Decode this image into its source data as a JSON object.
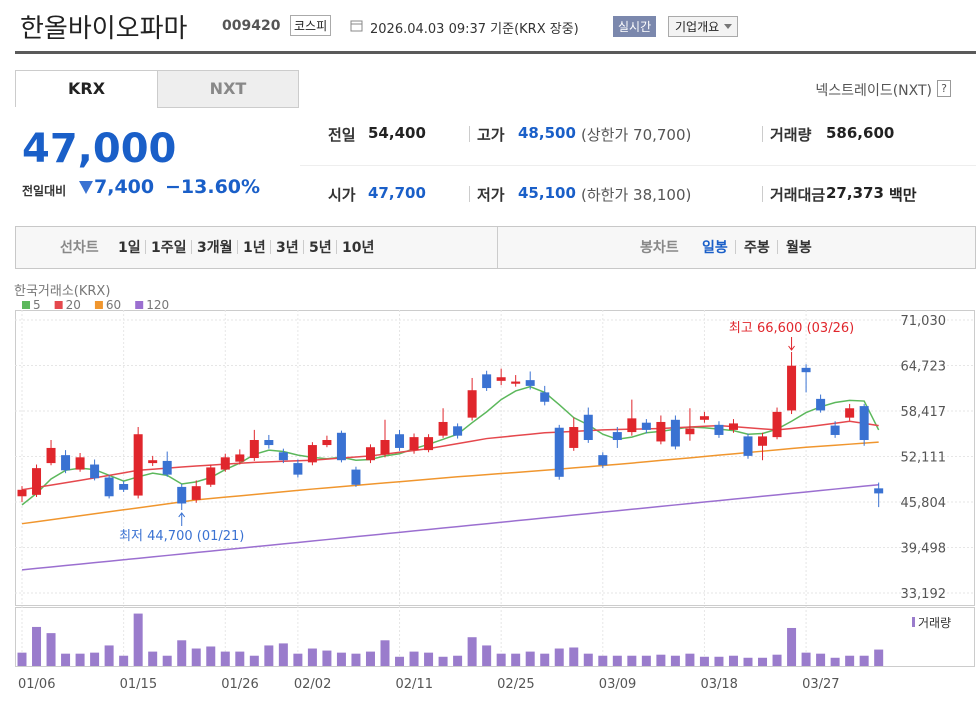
{
  "header": {
    "title": "한올바이오파마",
    "code": "009420",
    "market": "코스피",
    "timestamp": "2026.04.03 09:37 기준(KRX 장중)",
    "realtime": "실시간",
    "company_button": "기업개요"
  },
  "tabs": [
    "KRX",
    "NXT"
  ],
  "nxt_link": "넥스트레이드(NXT)",
  "help": "?",
  "quote": {
    "price": "47,000",
    "change_label": "전일대비",
    "change": "7,400",
    "change_rate": "−13.60%"
  },
  "info": [
    [
      {
        "label": "전일",
        "value": "54,400"
      },
      {
        "label": "고가",
        "value": "48,500",
        "note": "(상한가 70,700)"
      },
      {
        "label": "거래량",
        "value": "586,600"
      }
    ],
    [
      {
        "label": "시가",
        "value": "47,700"
      },
      {
        "label": "저가",
        "value": "45,100",
        "note": "(하한가 38,100)"
      },
      {
        "label": "거래대금",
        "value": "27,373",
        "unit": "백만"
      }
    ]
  ],
  "periods": {
    "line_label": "선차트",
    "line": [
      "1일",
      "1주일",
      "3개월",
      "1년",
      "3년",
      "5년",
      "10년"
    ],
    "candle_label": "봉차트",
    "candle": [
      "일봉",
      "주봉",
      "월봉"
    ],
    "active": "일봉"
  },
  "chart_data": {
    "type": "candlestick",
    "source": "한국거래소(KRX)",
    "categories": [
      "01/06",
      null,
      null,
      null,
      null,
      null,
      null,
      "01/15",
      null,
      null,
      null,
      null,
      null,
      null,
      "01/26",
      null,
      null,
      null,
      null,
      "02/02",
      null,
      null,
      null,
      null,
      null,
      null,
      "02/11",
      null,
      null,
      null,
      null,
      null,
      null,
      "02/25",
      null,
      null,
      null,
      null,
      null,
      null,
      "03/09",
      null,
      null,
      null,
      null,
      null,
      null,
      "03/18",
      null,
      null,
      null,
      null,
      null,
      null,
      "03/27",
      null,
      null,
      null,
      null,
      null
    ],
    "ohlc": {
      "open": [
        46600,
        46800,
        51200,
        52300,
        50300,
        51000,
        49200,
        48300,
        46700,
        51200,
        51500,
        47900,
        46100,
        48200,
        50300,
        51400,
        51900,
        54400,
        52700,
        51200,
        51300,
        53700,
        55400,
        50300,
        51600,
        52400,
        55200,
        53000,
        53000,
        55000,
        56300,
        57500,
        63500,
        62600,
        62200,
        62700,
        61000,
        56100,
        53300,
        57900,
        52300,
        55500,
        55500,
        56800,
        54200,
        57200,
        55200,
        57200,
        56500,
        55800,
        54900,
        53600,
        54800,
        58500,
        64400,
        60100,
        56400,
        57500,
        59100,
        47700
      ],
      "high": [
        48000,
        51000,
        54400,
        53000,
        52600,
        51700,
        49600,
        48700,
        56200,
        52200,
        52800,
        48300,
        48800,
        51000,
        52500,
        53100,
        55800,
        55100,
        53200,
        51700,
        54100,
        55000,
        55700,
        50700,
        53800,
        57200,
        55800,
        55300,
        55200,
        58800,
        56700,
        63000,
        64000,
        64300,
        63400,
        63900,
        61900,
        56500,
        57500,
        58900,
        52700,
        56200,
        60000,
        57300,
        57800,
        57800,
        58800,
        58300,
        57000,
        57300,
        55300,
        55400,
        58900,
        66600,
        64900,
        60700,
        57000,
        59400,
        59400,
        48500
      ],
      "low": [
        45800,
        46500,
        50900,
        49800,
        50000,
        48800,
        46300,
        47200,
        46300,
        50800,
        49300,
        44700,
        45700,
        47900,
        50000,
        51000,
        51500,
        53200,
        51200,
        49200,
        50900,
        53400,
        51300,
        47900,
        51200,
        52000,
        52900,
        52500,
        52700,
        54700,
        54600,
        57100,
        61200,
        62000,
        61800,
        61400,
        59200,
        48900,
        52900,
        54000,
        50500,
        53300,
        55000,
        55300,
        53800,
        53100,
        54300,
        56800,
        54700,
        55400,
        51800,
        51600,
        54500,
        58000,
        61000,
        58200,
        54700,
        57100,
        53600,
        45100
      ],
      "close": [
        47500,
        50500,
        53300,
        50200,
        52000,
        49100,
        46600,
        47500,
        55200,
        51600,
        49600,
        45600,
        48000,
        50600,
        52000,
        52400,
        54400,
        53700,
        51600,
        49600,
        53700,
        54400,
        51600,
        48200,
        53400,
        54400,
        53300,
        54800,
        54800,
        56900,
        55000,
        61300,
        61600,
        63100,
        62500,
        61900,
        59700,
        49300,
        56200,
        54400,
        50900,
        54400,
        57400,
        55800,
        56900,
        53500,
        56000,
        57700,
        55100,
        56700,
        52200,
        54900,
        58300,
        64700,
        63800,
        58500,
        55100,
        58800,
        54400,
        47000
      ]
    },
    "up_color": "#e0262c",
    "down_color": "#3a72d2",
    "moving_averages": [
      {
        "name": "5",
        "color": "#5cb85c",
        "values": [
          45400,
          47000,
          49000,
          50200,
          50500,
          50300,
          49500,
          48700,
          49300,
          49800,
          49500,
          48300,
          48600,
          49200,
          50300,
          51200,
          52400,
          53000,
          52800,
          52300,
          52000,
          51800,
          52000,
          51600,
          51700,
          52200,
          52500,
          53200,
          53800,
          54500,
          55200,
          56800,
          58300,
          60000,
          61200,
          61800,
          61000,
          59300,
          57500,
          56500,
          55200,
          54500,
          54800,
          55400,
          55600,
          55900,
          56200,
          56100,
          55900,
          55700,
          55200,
          55300,
          55900,
          57000,
          58200,
          59000,
          59600,
          59900,
          59800,
          55800
        ]
      },
      {
        "name": "20",
        "color": "#e5484d",
        "values": [
          47500,
          47825,
          48150,
          48475,
          48800,
          49150,
          49500,
          49850,
          50200,
          50350,
          50500,
          50650,
          50800,
          50925,
          51050,
          51175,
          51300,
          51375,
          51450,
          51525,
          51600,
          51750,
          51900,
          52050,
          52200,
          52450,
          52700,
          52950,
          53200,
          53550,
          53900,
          54250,
          54600,
          54800,
          55000,
          55200,
          55400,
          55500,
          55600,
          55700,
          55800,
          55850,
          55900,
          55950,
          56000,
          56100,
          56200,
          56300,
          56400,
          56250,
          56100,
          55950,
          55800,
          56000,
          56200,
          56470,
          56730,
          57000,
          56700,
          56400
        ]
      },
      {
        "name": "60",
        "color": "#f0962e",
        "values": [
          42800,
          43075,
          43350,
          43625,
          43900,
          44175,
          44450,
          44725,
          45000,
          45275,
          45550,
          45825,
          46100,
          46290,
          46480,
          46660,
          46850,
          47040,
          47230,
          47410,
          47600,
          47770,
          47940,
          48110,
          48280,
          48450,
          48620,
          48790,
          48960,
          49130,
          49300,
          49450,
          49600,
          49750,
          49900,
          50050,
          50200,
          50370,
          50530,
          50700,
          50870,
          51030,
          51200,
          51380,
          51570,
          51750,
          51930,
          52120,
          52300,
          52480,
          52670,
          52850,
          53030,
          53220,
          53400,
          53540,
          53680,
          53820,
          53960,
          54100
        ]
      },
      {
        "name": "120",
        "color": "#9b6fd0",
        "values": [
          36400,
          36600,
          36800,
          37000,
          37200,
          37400,
          37600,
          37800,
          38000,
          38200,
          38400,
          38600,
          38800,
          39000,
          39200,
          39400,
          39600,
          39800,
          40000,
          40200,
          40400,
          40600,
          40800,
          41000,
          41200,
          41400,
          41600,
          41800,
          42000,
          42200,
          42400,
          42600,
          42800,
          43000,
          43200,
          43400,
          43600,
          43800,
          44000,
          44200,
          44400,
          44600,
          44800,
          45000,
          45200,
          45400,
          45600,
          45800,
          46000,
          46200,
          46400,
          46600,
          46800,
          47000,
          47200,
          47400,
          47600,
          47800,
          48000,
          48200
        ]
      }
    ],
    "volume": {
      "name": "거래량",
      "color": "#9a7ccc",
      "ylim": [
        0,
        2000000
      ],
      "values": [
        477000,
        1395000,
        1174000,
        440000,
        440000,
        477000,
        734000,
        367000,
        1872000,
        514000,
        367000,
        918000,
        624000,
        697000,
        514000,
        514000,
        367000,
        734000,
        807000,
        440000,
        624000,
        551000,
        477000,
        440000,
        514000,
        918000,
        330000,
        514000,
        477000,
        330000,
        367000,
        1028000,
        734000,
        440000,
        440000,
        514000,
        440000,
        624000,
        661000,
        440000,
        367000,
        367000,
        367000,
        367000,
        404000,
        367000,
        440000,
        330000,
        330000,
        367000,
        294000,
        294000,
        404000,
        1358000,
        477000,
        440000,
        294000,
        367000,
        367000,
        586600
      ]
    },
    "ylim": [
      31530,
      72420
    ],
    "yticks": [
      {
        "value": 71030,
        "label": "71,030"
      },
      {
        "value": 64723,
        "label": "64,723"
      },
      {
        "value": 58417,
        "label": "58,417"
      },
      {
        "value": 52111,
        "label": "52,111"
      },
      {
        "value": 45804,
        "label": "45,804"
      },
      {
        "value": 39498,
        "label": "39,498"
      },
      {
        "value": 33192,
        "label": "33,192"
      }
    ],
    "grid": true,
    "annotations": [
      {
        "kind": "max",
        "text": "최고 66,600 (03/26)",
        "color": "#e0262c"
      },
      {
        "kind": "min",
        "text": "최저 44,700 (01/21)",
        "color": "#3a72d2"
      }
    ]
  }
}
